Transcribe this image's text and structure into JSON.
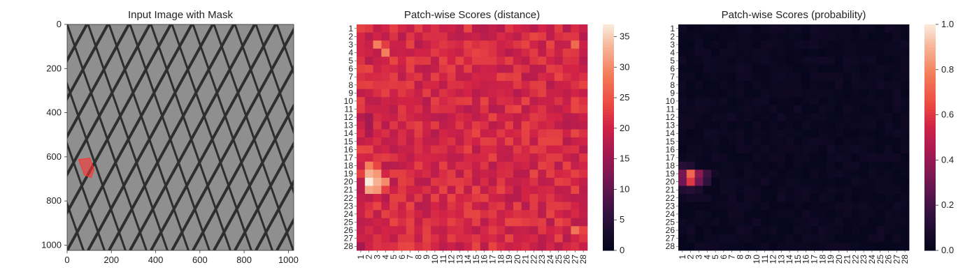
{
  "figure": {
    "panels": [
      {
        "title": "Input Image with Mask"
      },
      {
        "title": "Patch-wise Scores (distance)"
      },
      {
        "title": "Patch-wise Scores (probability)"
      }
    ]
  },
  "chart_data": [
    {
      "type": "image",
      "title": "Input Image with Mask",
      "xlim": [
        0,
        1024
      ],
      "ylim": [
        1024,
        0
      ],
      "xticks": [
        0,
        200,
        400,
        600,
        800,
        1000
      ],
      "yticks": [
        0,
        200,
        400,
        600,
        800,
        1000
      ],
      "image": {
        "description_colors": {
          "background": "#8f8f8f",
          "grid_line": "#2e2e2e",
          "highlight": "#b0b0b0"
        }
      },
      "mask": {
        "color": "#ff3333",
        "opacity": 0.6,
        "center": [
          90,
          650
        ]
      }
    },
    {
      "type": "heatmap",
      "title": "Patch-wise Scores (distance)",
      "rows": 28,
      "cols": 28,
      "tick_labels": [
        "1",
        "2",
        "3",
        "4",
        "5",
        "6",
        "7",
        "8",
        "9",
        "10",
        "11",
        "12",
        "13",
        "14",
        "15",
        "16",
        "17",
        "18",
        "19",
        "20",
        "21",
        "22",
        "23",
        "24",
        "25",
        "26",
        "27",
        "28"
      ],
      "colorbar": {
        "min": 0,
        "max": 37,
        "ticks": [
          0,
          5,
          10,
          15,
          20,
          25,
          30,
          35
        ],
        "colormap": "rocket"
      },
      "base_value": 20,
      "hotspots": [
        {
          "row": 20,
          "col": 2,
          "value": 37
        },
        {
          "row": 19,
          "col": 2,
          "value": 33
        },
        {
          "row": 20,
          "col": 3,
          "value": 33
        },
        {
          "row": 21,
          "col": 2,
          "value": 32
        },
        {
          "row": 19,
          "col": 3,
          "value": 31
        },
        {
          "row": 21,
          "col": 3,
          "value": 31
        },
        {
          "row": 20,
          "col": 4,
          "value": 30
        },
        {
          "row": 18,
          "col": 2,
          "value": 29
        },
        {
          "row": 3,
          "col": 3,
          "value": 29
        },
        {
          "row": 4,
          "col": 4,
          "value": 29
        },
        {
          "row": 26,
          "col": 27,
          "value": 28
        },
        {
          "row": 3,
          "col": 27,
          "value": 27
        },
        {
          "row": 12,
          "col": 2,
          "value": 16
        },
        {
          "row": 13,
          "col": 2,
          "value": 16
        },
        {
          "row": 14,
          "col": 2,
          "value": 17
        },
        {
          "row": 28,
          "col": 1,
          "value": 16
        }
      ]
    },
    {
      "type": "heatmap",
      "title": "Patch-wise Scores (probability)",
      "rows": 28,
      "cols": 28,
      "tick_labels": [
        "1",
        "2",
        "3",
        "4",
        "5",
        "6",
        "7",
        "8",
        "9",
        "10",
        "11",
        "12",
        "13",
        "14",
        "15",
        "16",
        "17",
        "18",
        "19",
        "20",
        "21",
        "22",
        "23",
        "24",
        "25",
        "26",
        "27",
        "28"
      ],
      "colorbar": {
        "min": 0,
        "max": 1,
        "ticks": [
          0.0,
          0.2,
          0.4,
          0.6,
          0.8,
          1.0
        ],
        "tick_labels": [
          "0.0",
          "0.2",
          "0.4",
          "0.6",
          "0.8",
          "1.0"
        ],
        "colormap": "rocket"
      },
      "base_value": 0.01,
      "hotspots": [
        {
          "row": 19,
          "col": 2,
          "value": 0.72
        },
        {
          "row": 20,
          "col": 2,
          "value": 0.6
        },
        {
          "row": 19,
          "col": 3,
          "value": 0.38
        },
        {
          "row": 19,
          "col": 1,
          "value": 0.32
        },
        {
          "row": 20,
          "col": 1,
          "value": 0.3
        },
        {
          "row": 20,
          "col": 3,
          "value": 0.3
        },
        {
          "row": 19,
          "col": 4,
          "value": 0.18
        },
        {
          "row": 20,
          "col": 4,
          "value": 0.15
        },
        {
          "row": 18,
          "col": 1,
          "value": 0.12
        },
        {
          "row": 18,
          "col": 2,
          "value": 0.1
        },
        {
          "row": 21,
          "col": 1,
          "value": 0.1
        },
        {
          "row": 21,
          "col": 2,
          "value": 0.12
        },
        {
          "row": 21,
          "col": 3,
          "value": 0.08
        },
        {
          "row": 22,
          "col": 2,
          "value": 0.06
        },
        {
          "row": 22,
          "col": 3,
          "value": 0.05
        }
      ]
    }
  ]
}
